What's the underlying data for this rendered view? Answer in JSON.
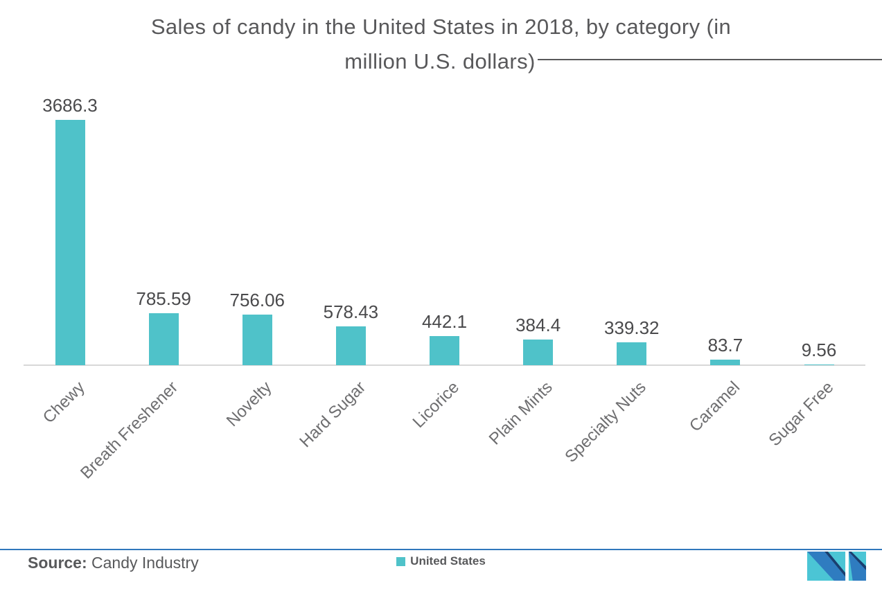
{
  "title": {
    "lines": [
      "Sales of candy in the United States in 2018, by category (in",
      "million U.S. dollars)"
    ]
  },
  "chart_data": {
    "type": "bar",
    "title": "Sales of candy in the United States in 2018, by category (in million U.S. dollars)",
    "categories": [
      "Chewy",
      "Breath Freshener",
      "Novelty",
      "Hard Sugar",
      "Licorice",
      "Plain Mints",
      "Specialty Nuts",
      "Caramel",
      "Sugar Free"
    ],
    "series": [
      {
        "name": "United States",
        "values": [
          3686.3,
          785.59,
          756.06,
          578.43,
          442.1,
          384.4,
          339.32,
          83.7,
          9.56
        ]
      }
    ],
    "xlabel": "",
    "ylabel": "",
    "ylim": [
      0,
      3900
    ],
    "grid": false,
    "y_axis_visible": false,
    "value_labels_shown": true,
    "legend_position": "bottom-center",
    "bar_color": "#4FC2C9"
  },
  "legend": {
    "items": [
      {
        "label": "United States",
        "color": "#4FC2C9"
      }
    ]
  },
  "footer": {
    "source_label": "Source:",
    "source_text": "Candy Industry"
  },
  "logo": {
    "name": "mordor-intelligence-logo",
    "colors": {
      "blue": "#2F7CC0",
      "teal": "#4BC5D5",
      "navy": "#1A3E6F"
    }
  },
  "colors": {
    "bar": "#4FC2C9",
    "title_text": "#58585A",
    "value_text": "#4A4A4C",
    "category_text": "#6E6E70",
    "axis_line": "#D8D8D8",
    "footer_line": "#3077BC",
    "source_text": "#58595B"
  }
}
